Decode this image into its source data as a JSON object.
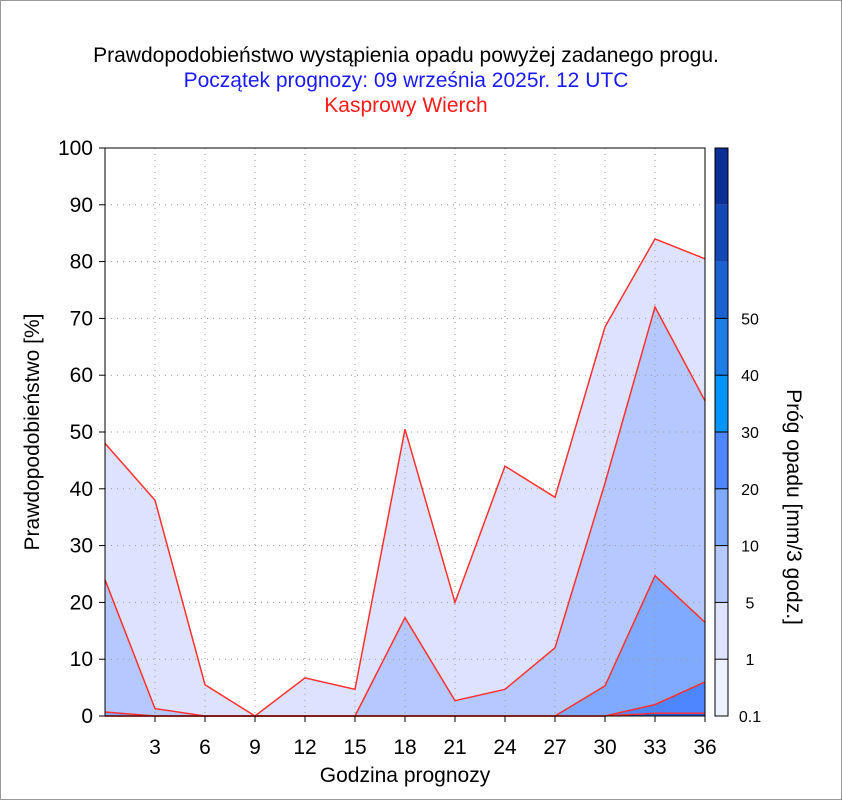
{
  "chart_data": {
    "type": "area",
    "title": "Prawdopodobieństwo wystąpienia opadu powyżej zadanego progu.",
    "subtitle": "Początek prognozy: 09 września 2025r. 12 UTC",
    "station": "Kasprowy Wierch",
    "xlabel": "Godzina prognozy",
    "ylabel": "Prawdopodobieństwo [%]",
    "colorbar_label": "Próg opadu [mm/3 godz.]",
    "x": [
      0,
      3,
      6,
      9,
      12,
      15,
      18,
      21,
      24,
      27,
      30,
      33,
      36
    ],
    "xticks": [
      3,
      6,
      9,
      12,
      15,
      18,
      21,
      24,
      27,
      30,
      33,
      36
    ],
    "xlim": [
      0,
      36
    ],
    "ylim": [
      0,
      100
    ],
    "yticks": [
      0,
      10,
      20,
      30,
      40,
      50,
      60,
      70,
      80,
      90,
      100
    ],
    "grid": true,
    "series": [
      {
        "name": "0.1",
        "color": "#dde3ff",
        "values": [
          48,
          38,
          5.5,
          0,
          6.7,
          4.7,
          50.5,
          20,
          44,
          38.5,
          68.5,
          84,
          80.5
        ]
      },
      {
        "name": "1",
        "color": "#b5c8ff",
        "values": [
          24,
          1.3,
          0,
          0,
          0,
          0,
          17.3,
          2.7,
          4.7,
          12,
          41,
          72,
          55.5
        ]
      },
      {
        "name": "5",
        "color": "#80aaff",
        "values": [
          0.7,
          0,
          0,
          0,
          0,
          0,
          0,
          0,
          0,
          0,
          5.3,
          24.7,
          16.5
        ]
      },
      {
        "name": "10",
        "color": "#4d86ff",
        "values": [
          0,
          0,
          0,
          0,
          0,
          0,
          0,
          0,
          0,
          0,
          0,
          2,
          6
        ]
      },
      {
        "name": "20",
        "color": "#1f5ed6",
        "values": [
          0,
          0,
          0,
          0,
          0,
          0,
          0,
          0,
          0,
          0,
          0,
          0.5,
          0.5
        ]
      }
    ],
    "line_color": "#ff3030",
    "colorbar": {
      "labels": [
        "0.1",
        "1",
        "5",
        "10",
        "20",
        "30",
        "40",
        "50"
      ],
      "colors": [
        "#eef1ff",
        "#dde3ff",
        "#b5c8ff",
        "#80aaff",
        "#4d86ff",
        "#0094ff",
        "#1e7de6",
        "#1a62cf",
        "#1448b5",
        "#0b2f94"
      ]
    }
  }
}
